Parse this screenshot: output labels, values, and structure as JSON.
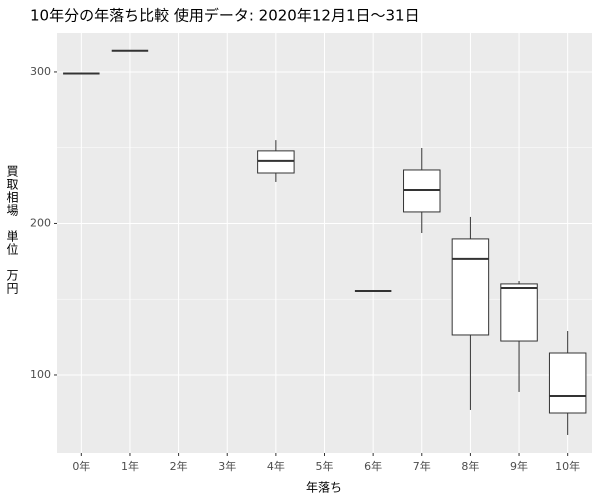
{
  "chart_data": {
    "type": "boxplot",
    "title": "10年分の年落ち比較 使用データ: 2020年12月1日～31日",
    "x_label": "年落ち",
    "y_label": "買取相場　単位　万円",
    "categories": [
      "0年",
      "1年",
      "2年",
      "3年",
      "4年",
      "5年",
      "6年",
      "7年",
      "8年",
      "9年",
      "10年"
    ],
    "min": [
      299,
      314,
      null,
      null,
      227.4,
      null,
      155.4,
      193.7,
      76.9,
      88.8,
      60.4
    ],
    "q1": [
      299,
      314,
      null,
      null,
      233.3,
      null,
      155.4,
      207.6,
      126.4,
      122.4,
      74.9
    ],
    "median": [
      299,
      314,
      null,
      null,
      241.3,
      null,
      155.4,
      222.1,
      176.6,
      157.4,
      86.1
    ],
    "q3": [
      299,
      314,
      null,
      null,
      247.9,
      null,
      155.4,
      235.3,
      189.8,
      160.1,
      114.5
    ],
    "max": [
      299,
      314,
      null,
      null,
      255,
      null,
      155.4,
      249.8,
      204.3,
      162,
      129
    ],
    "color": "#333333",
    "fill": "#ffffff",
    "ylim": [
      48.5,
      325.7
    ],
    "yticks": [
      100,
      200,
      300
    ],
    "grid": true
  }
}
